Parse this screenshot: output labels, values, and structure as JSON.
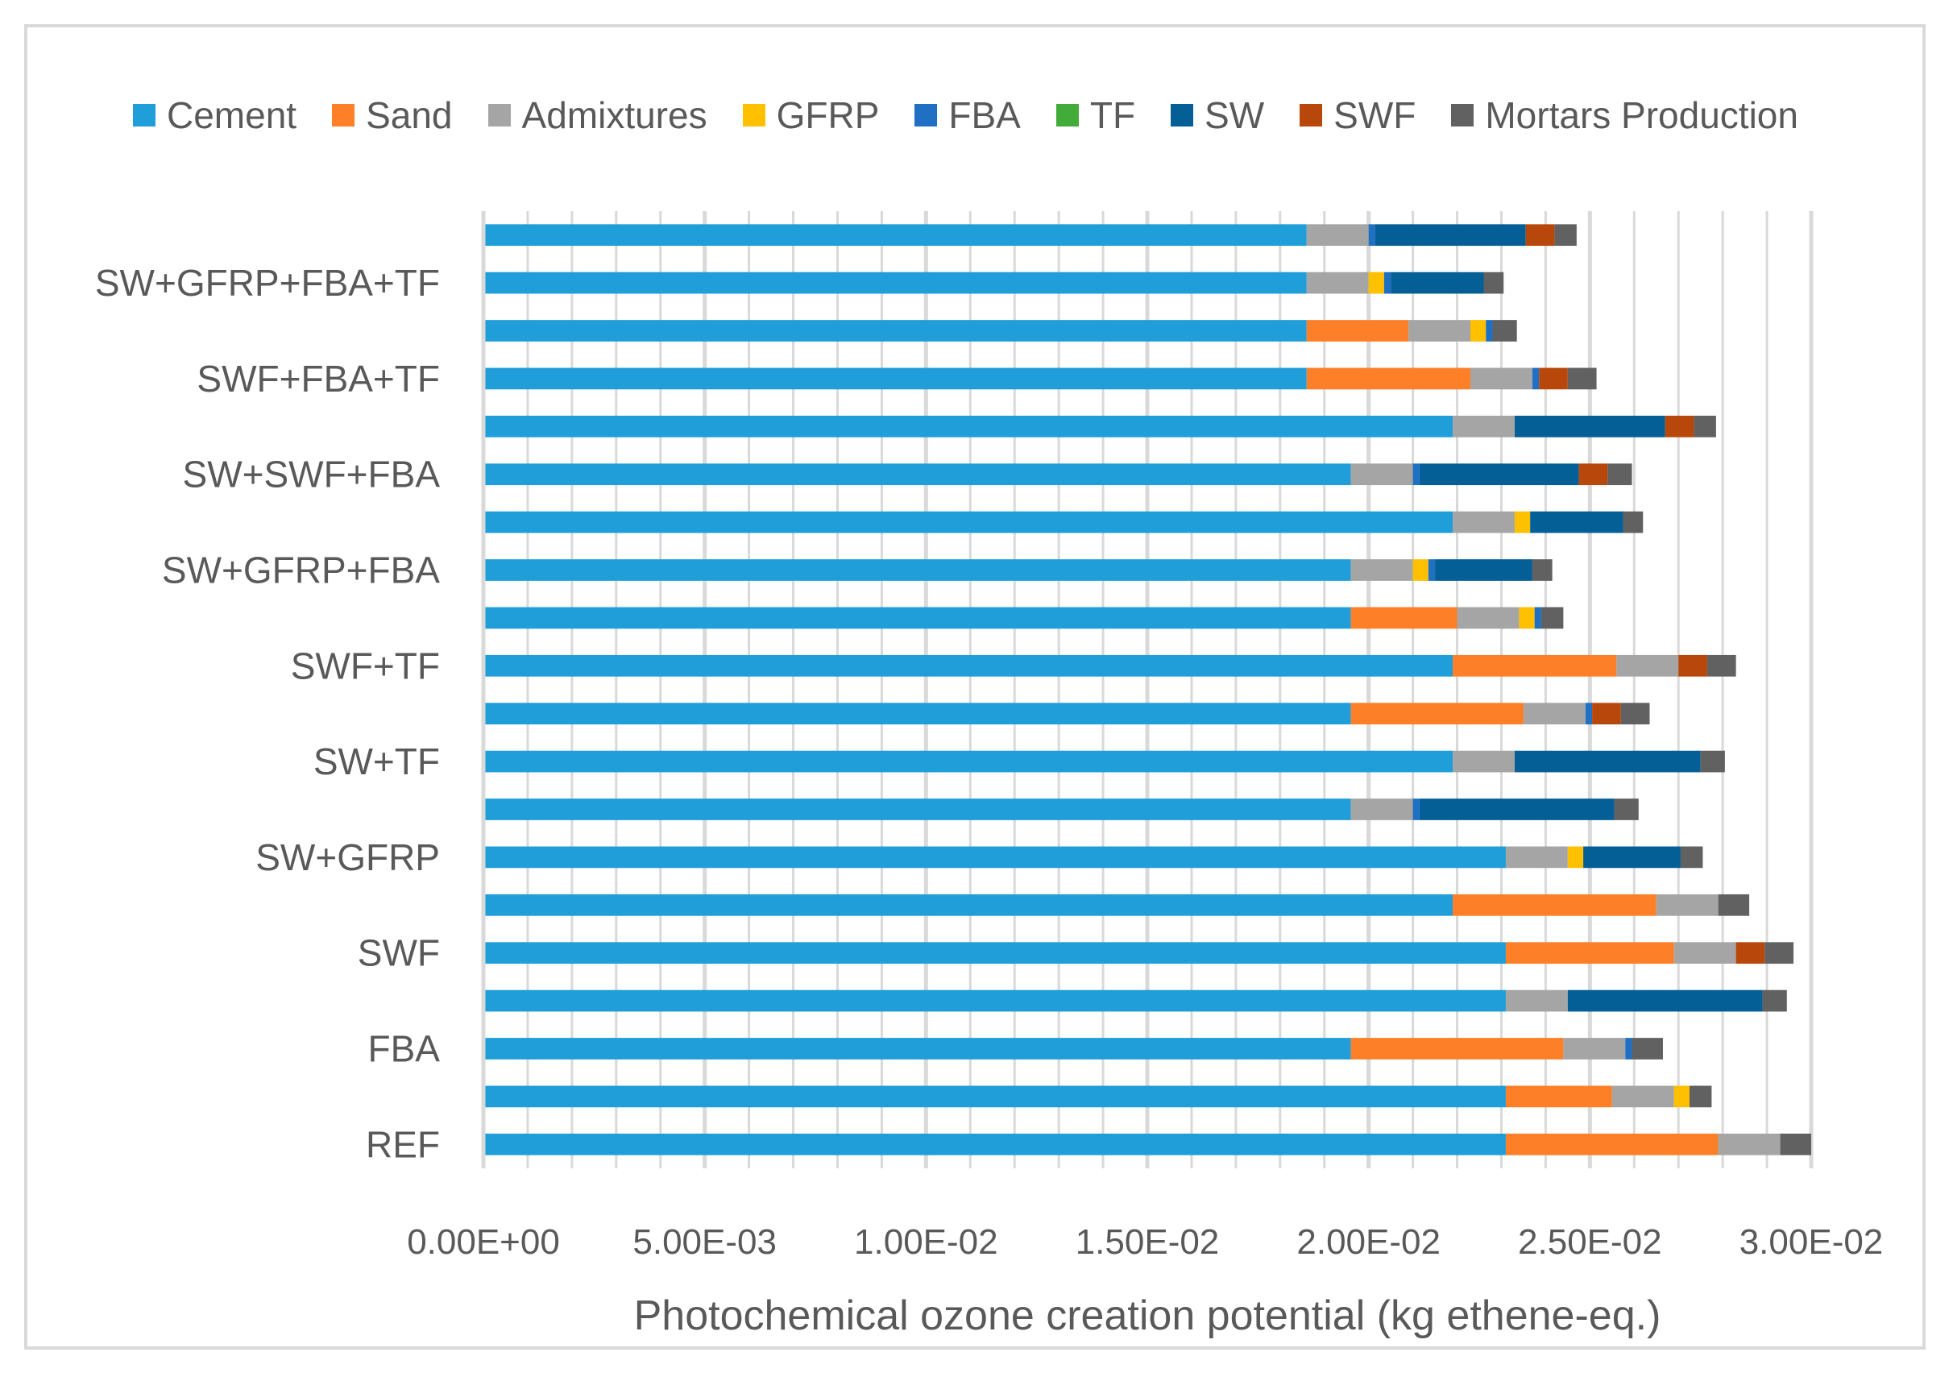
{
  "chart_data": {
    "type": "bar",
    "orientation": "horizontal",
    "stacked": true,
    "xlabel": "Photochemical ozone creation potential (kg ethene-eq.)",
    "ylabel": "",
    "xlim": [
      0,
      0.03
    ],
    "x_ticks": [
      "0.00E+00",
      "5.00E-03",
      "1.00E-02",
      "1.50E-02",
      "2.00E-02",
      "2.50E-02",
      "3.00E-02"
    ],
    "x_tick_values": [
      0,
      0.005,
      0.01,
      0.015,
      0.02,
      0.025,
      0.03
    ],
    "grid": "vertical",
    "legend_position": "top",
    "categories": [
      "REF",
      "",
      "FBA",
      "",
      "SWF",
      "",
      "SW+GFRP",
      "",
      "SW+TF",
      "",
      "SWF+TF",
      "",
      "SW+GFRP+FBA",
      "",
      "SW+SWF+FBA",
      "",
      "SWF+FBA+TF",
      "",
      "SW+GFRP+FBA+TF",
      ""
    ],
    "series": [
      {
        "name": "Cement",
        "color": "#1f9ed9",
        "values": [
          0.0231,
          0.0231,
          0.0196,
          0.0231,
          0.0231,
          0.0219,
          0.0231,
          0.0196,
          0.0219,
          0.0196,
          0.0219,
          0.0196,
          0.0196,
          0.0219,
          0.0196,
          0.0219,
          0.0186,
          0.0186,
          0.0186,
          0.0186
        ]
      },
      {
        "name": "Sand",
        "color": "#fd7f27",
        "values": [
          0.0048,
          0.0024,
          0.0048,
          0,
          0.0038,
          0.0046,
          0,
          0,
          0,
          0.0039,
          0.0037,
          0.0024,
          0,
          0,
          0,
          0,
          0.0037,
          0.0023,
          0,
          0
        ]
      },
      {
        "name": "Admixtures",
        "color": "#a5a5a5",
        "values": [
          0.0014,
          0.0014,
          0.0014,
          0.0014,
          0.0014,
          0.0014,
          0.0014,
          0.0014,
          0.0014,
          0.0014,
          0.0014,
          0.0014,
          0.0014,
          0.0014,
          0.0014,
          0.0014,
          0.0014,
          0.0014,
          0.0014,
          0.0014
        ]
      },
      {
        "name": "GFRP",
        "color": "#ffc000",
        "values": [
          0,
          0.00035,
          0,
          0,
          0,
          0,
          0.00035,
          0,
          0,
          0,
          0,
          0.00035,
          0.00035,
          0.00035,
          0,
          0,
          0,
          0.00035,
          0.00035,
          0
        ]
      },
      {
        "name": "FBA",
        "color": "#1f6fc2",
        "values": [
          0,
          0,
          0.00015,
          0,
          0,
          0,
          0,
          0.00015,
          0,
          0.00015,
          0,
          0.00015,
          0.00015,
          0,
          0.00015,
          0,
          0.00015,
          0.00015,
          0.00015,
          0.00015
        ]
      },
      {
        "name": "TF",
        "color": "#43ab3a",
        "values": [
          0,
          0,
          0,
          0,
          0,
          0,
          0,
          0,
          0,
          0,
          0,
          0,
          0,
          0,
          0,
          0,
          0,
          0,
          0,
          0
        ]
      },
      {
        "name": "SW",
        "color": "#055f97",
        "values": [
          0,
          0,
          0,
          0.0044,
          0,
          0,
          0.0022,
          0.0044,
          0.0042,
          0,
          0,
          0,
          0.0022,
          0.0021,
          0.0036,
          0.0034,
          0,
          0,
          0.0021,
          0.0034
        ]
      },
      {
        "name": "SWF",
        "color": "#b8470c",
        "values": [
          0,
          0,
          0,
          0,
          0.00065,
          0,
          0,
          0,
          0,
          0.00065,
          0.00065,
          0,
          0,
          0,
          0.00065,
          0.00065,
          0.00065,
          0,
          0,
          0.00065
        ]
      },
      {
        "name": "Mortars Production",
        "color": "#616161",
        "values": [
          0.0007,
          0.0005,
          0.0007,
          0.00055,
          0.00065,
          0.0007,
          0.0005,
          0.00055,
          0.00055,
          0.00065,
          0.00065,
          0.0005,
          0.00045,
          0.00045,
          0.00055,
          0.0005,
          0.00065,
          0.00055,
          0.00045,
          0.0005
        ]
      }
    ]
  }
}
